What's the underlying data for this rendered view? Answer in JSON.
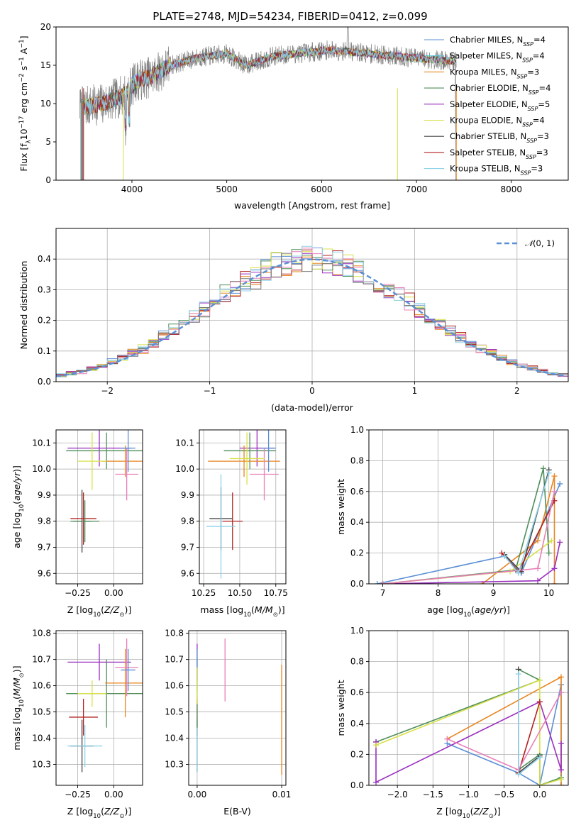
{
  "chart_data": [
    {
      "type": "line",
      "title": "PLATE=2748, MJD=54234, FIBERID=0412, z=0.099",
      "xlabel": "wavelength [Angstrom, rest frame]",
      "ylabel": "Flux [f_λ10^-17 erg cm^-2 s^-1 A^-1]",
      "xlim": [
        3200,
        8600
      ],
      "ylim": [
        0,
        20
      ],
      "xticks": [
        4000,
        5000,
        6000,
        7000,
        8000
      ],
      "yticks": [
        0,
        5,
        10,
        15,
        20
      ],
      "grid": false,
      "legend_position": "top-right",
      "spectrum_range": [
        3450,
        7420
      ],
      "spectrum_knots": {
        "x": [
          3450,
          3700,
          3900,
          4050,
          4200,
          4400,
          4700,
          5000,
          5200,
          5500,
          5800,
          6100,
          6500,
          6800,
          7100,
          7420
        ],
        "y": [
          9.5,
          10.0,
          11.0,
          13.0,
          13.5,
          15.0,
          16.0,
          16.5,
          15.0,
          16.2,
          16.6,
          17.0,
          16.5,
          16.2,
          15.8,
          15.5
        ]
      },
      "series": [
        {
          "name": "Chabrier MILES, N_SSP=4",
          "color": "#5b8fd6"
        },
        {
          "name": "Salpeter MILES, N_SSP=4",
          "color": "#54c8d8"
        },
        {
          "name": "Kroupa MILES, N_SSP=3",
          "color": "#e8841f"
        },
        {
          "name": "Chabrier ELODIE, N_SSP=4",
          "color": "#4f8f5a"
        },
        {
          "name": "Salpeter ELODIE, N_SSP=5",
          "color": "#9b2fbf"
        },
        {
          "name": "Kroupa ELODIE, N_SSP=4",
          "color": "#d8e048"
        },
        {
          "name": "Chabrier STELIB, N_SSP=3",
          "color": "#444444"
        },
        {
          "name": "Salpeter STELIB, N_SSP=3",
          "color": "#b22222"
        },
        {
          "name": "Kroupa STELIB, N_SSP=3",
          "color": "#8fd2e8"
        }
      ],
      "data_color": "#808080"
    },
    {
      "type": "line",
      "subtype": "step-histogram",
      "xlabel": "(data-model)/error",
      "ylabel": "Normed distribution",
      "xlim": [
        -2.5,
        2.5
      ],
      "ylim": [
        0,
        0.5
      ],
      "xticks": [
        -2,
        -1,
        0,
        1,
        2
      ],
      "yticks": [
        0.0,
        0.1,
        0.2,
        0.3,
        0.4
      ],
      "grid": true,
      "legend_position": "top-right",
      "reference_curve": {
        "name": "N(0,1)",
        "color": "#5b8fd6",
        "style": "dashed"
      },
      "bin_width": 0.1,
      "histogram_colors": [
        "#5b8fd6",
        "#e8841f",
        "#4f8f5a",
        "#9b2fbf",
        "#d8e048",
        "#b22222",
        "#e87fb8",
        "#8fd2e8",
        "#777777"
      ]
    },
    {
      "type": "scatter",
      "subtype": "errorbar",
      "xlabel": "Z [log10(Z/Z⊙)]",
      "ylabel": "age  [log10(age/yr)]",
      "xlim": [
        -0.4,
        0.2
      ],
      "ylim": [
        9.56,
        10.15
      ],
      "xticks": [
        -0.25,
        0.0
      ],
      "yticks": [
        9.6,
        9.7,
        9.8,
        9.9,
        10.0,
        10.1
      ],
      "points": [
        {
          "x": -0.22,
          "y": 9.8,
          "xerr": 0.06,
          "yerr": 0.12,
          "color": "#444444"
        },
        {
          "x": -0.21,
          "y": 9.81,
          "xerr": 0.09,
          "yerr": 0.1,
          "color": "#b22222"
        },
        {
          "x": -0.2,
          "y": 9.8,
          "xerr": 0.1,
          "yerr": 0.08,
          "color": "#4f8f5a"
        },
        {
          "x": -0.1,
          "y": 10.08,
          "xerr": 0.22,
          "yerr": 0.07,
          "color": "#9b2fbf"
        },
        {
          "x": -0.05,
          "y": 10.07,
          "xerr": 0.28,
          "yerr": 0.07,
          "color": "#4f8f5a"
        },
        {
          "x": 0.08,
          "y": 10.03,
          "xerr": 0.16,
          "yerr": 0.06,
          "color": "#e8841f"
        },
        {
          "x": 0.09,
          "y": 9.98,
          "xerr": 0.08,
          "yerr": 0.1,
          "color": "#e87fb8"
        },
        {
          "x": 0.1,
          "y": 10.08,
          "xerr": 0.05,
          "yerr": 0.09,
          "color": "#5b8fd6"
        },
        {
          "x": -0.15,
          "y": 10.03,
          "xerr": 0.1,
          "yerr": 0.11,
          "color": "#d8e048"
        }
      ]
    },
    {
      "type": "scatter",
      "subtype": "errorbar",
      "xlabel": "mass [log10(M/M⊙)]",
      "xlim": [
        10.22,
        10.82
      ],
      "ylim": [
        9.56,
        10.15
      ],
      "xticks": [
        10.25,
        10.5,
        10.75
      ],
      "yticks": [
        9.6,
        9.7,
        9.8,
        9.9,
        10.0,
        10.1
      ],
      "points": [
        {
          "x": 10.37,
          "y": 9.81,
          "xerr": 0.08,
          "yerr": 0.12,
          "color": "#444444"
        },
        {
          "x": 10.45,
          "y": 9.8,
          "xerr": 0.07,
          "yerr": 0.11,
          "color": "#b22222"
        },
        {
          "x": 10.37,
          "y": 9.78,
          "xerr": 0.1,
          "yerr": 0.2,
          "color": "#8fd2e8"
        },
        {
          "x": 10.62,
          "y": 10.08,
          "xerr": 0.12,
          "yerr": 0.07,
          "color": "#9b2fbf"
        },
        {
          "x": 10.57,
          "y": 10.07,
          "xerr": 0.18,
          "yerr": 0.07,
          "color": "#4f8f5a"
        },
        {
          "x": 10.53,
          "y": 10.03,
          "xerr": 0.25,
          "yerr": 0.06,
          "color": "#e8841f"
        },
        {
          "x": 10.67,
          "y": 9.98,
          "xerr": 0.1,
          "yerr": 0.1,
          "color": "#e87fb8"
        },
        {
          "x": 10.7,
          "y": 10.08,
          "xerr": 0.05,
          "yerr": 0.09,
          "color": "#5b8fd6"
        },
        {
          "x": 10.55,
          "y": 10.04,
          "xerr": 0.12,
          "yerr": 0.1,
          "color": "#d8e048"
        }
      ]
    },
    {
      "type": "line",
      "xlabel": "age  [log10(age/yr)]",
      "ylabel": "mass weight",
      "xlim": [
        6.75,
        10.35
      ],
      "ylim": [
        0.0,
        1.0
      ],
      "xticks": [
        7,
        8,
        9,
        10
      ],
      "yticks": [
        0.0,
        0.2,
        0.4,
        0.6,
        0.8,
        1.0
      ],
      "grid": true,
      "series": [
        {
          "color": "#5b8fd6",
          "x": [
            6.9,
            9.2,
            9.5,
            10.2
          ],
          "y": [
            0.0,
            0.18,
            0.07,
            0.65
          ]
        },
        {
          "color": "#e8841f",
          "x": [
            8.8,
            9.8,
            10.1,
            10.1
          ],
          "y": [
            0.0,
            0.28,
            0.7,
            0.0
          ]
        },
        {
          "color": "#4f8f5a",
          "x": [
            7.0,
            9.4,
            9.9,
            10.0
          ],
          "y": [
            0.0,
            0.09,
            0.75,
            0.2
          ]
        },
        {
          "color": "#9b2fbf",
          "x": [
            7.0,
            9.8,
            10.1,
            10.2
          ],
          "y": [
            0.0,
            0.02,
            0.1,
            0.27
          ]
        },
        {
          "color": "#d8e048",
          "x": [
            7.0,
            9.3,
            10.05
          ],
          "y": [
            0.0,
            0.08,
            0.28
          ]
        },
        {
          "color": "#444444",
          "x": [
            9.2,
            9.5,
            10.0
          ],
          "y": [
            0.19,
            0.08,
            0.74
          ]
        },
        {
          "color": "#b22222",
          "x": [
            9.15,
            9.45,
            10.1
          ],
          "y": [
            0.2,
            0.08,
            0.54
          ]
        },
        {
          "color": "#e87fb8",
          "x": [
            7.0,
            9.8,
            10.1
          ],
          "y": [
            0.0,
            0.1,
            0.6
          ]
        },
        {
          "color": "#8fd2e8",
          "x": [
            9.2,
            9.45,
            10.0
          ],
          "y": [
            0.18,
            0.07,
            0.72
          ]
        }
      ]
    },
    {
      "type": "scatter",
      "subtype": "errorbar",
      "xlabel": "Z [log10(Z/Z⊙)]",
      "ylabel": "mass [log10(M/M⊙)]",
      "xlim": [
        -0.4,
        0.2
      ],
      "ylim": [
        10.22,
        10.81
      ],
      "xticks": [
        -0.25,
        0.0
      ],
      "yticks": [
        10.3,
        10.4,
        10.5,
        10.6,
        10.7,
        10.8
      ],
      "points": [
        {
          "x": -0.22,
          "y": 10.37,
          "xerr": 0.08,
          "yerr": 0.1,
          "color": "#444444"
        },
        {
          "x": -0.21,
          "y": 10.48,
          "xerr": 0.1,
          "yerr": 0.07,
          "color": "#b22222"
        },
        {
          "x": -0.2,
          "y": 10.37,
          "xerr": 0.12,
          "yerr": 0.08,
          "color": "#8fd2e8"
        },
        {
          "x": -0.1,
          "y": 10.69,
          "xerr": 0.22,
          "yerr": 0.07,
          "color": "#9b2fbf"
        },
        {
          "x": -0.05,
          "y": 10.57,
          "xerr": 0.28,
          "yerr": 0.13,
          "color": "#4f8f5a"
        },
        {
          "x": 0.08,
          "y": 10.61,
          "xerr": 0.14,
          "yerr": 0.13,
          "color": "#e8841f"
        },
        {
          "x": 0.09,
          "y": 10.67,
          "xerr": 0.08,
          "yerr": 0.11,
          "color": "#e87fb8"
        },
        {
          "x": 0.1,
          "y": 10.66,
          "xerr": 0.05,
          "yerr": 0.08,
          "color": "#5b8fd6"
        },
        {
          "x": -0.15,
          "y": 10.57,
          "xerr": 0.1,
          "yerr": 0.05,
          "color": "#d8e048"
        }
      ]
    },
    {
      "type": "scatter",
      "subtype": "errorbar",
      "xlabel": "E(B-V)",
      "xlim": [
        -0.001,
        0.0105
      ],
      "ylim": [
        10.22,
        10.81
      ],
      "xticks": [
        0.0,
        0.01
      ],
      "xtick_labels": [
        "0.00",
        "0.01"
      ],
      "yticks": [
        10.3,
        10.4,
        10.5,
        10.6,
        10.7,
        10.8
      ],
      "points": [
        {
          "x": 0.0,
          "y": 10.37,
          "yerr": 0.1,
          "color": "#444444"
        },
        {
          "x": 0.0,
          "y": 10.48,
          "yerr": 0.07,
          "color": "#b22222"
        },
        {
          "x": 0.0,
          "y": 10.37,
          "yerr": 0.1,
          "color": "#8fd2e8"
        },
        {
          "x": 0.0,
          "y": 10.69,
          "yerr": 0.07,
          "color": "#9b2fbf"
        },
        {
          "x": 0.0,
          "y": 10.57,
          "yerr": 0.13,
          "color": "#4f8f5a"
        },
        {
          "x": 0.01,
          "y": 10.47,
          "yerr": 0.21,
          "color": "#e8841f"
        },
        {
          "x": 0.0033,
          "y": 10.66,
          "yerr": 0.12,
          "color": "#e87fb8"
        },
        {
          "x": 0.0,
          "y": 10.66,
          "yerr": 0.08,
          "color": "#5b8fd6"
        },
        {
          "x": 0.0,
          "y": 10.6,
          "yerr": 0.07,
          "color": "#d8e048"
        }
      ]
    },
    {
      "type": "line",
      "xlabel": "Z [log10(Z/Z⊙)]",
      "ylabel": "mass weight",
      "xlim": [
        -2.4,
        0.4
      ],
      "ylim": [
        0.0,
        1.0
      ],
      "xticks": [
        -2.0,
        -1.5,
        -1.0,
        -0.5,
        0.0
      ],
      "yticks": [
        0.0,
        0.2,
        0.4,
        0.6,
        0.8,
        1.0
      ],
      "grid": true,
      "series": [
        {
          "color": "#5b8fd6",
          "x": [
            -1.3,
            -0.3,
            0.0,
            0.3,
            0.3
          ],
          "y": [
            0.27,
            0.08,
            0.0,
            0.65,
            0.0
          ]
        },
        {
          "color": "#e8841f",
          "x": [
            -1.3,
            0.3,
            0.3
          ],
          "y": [
            0.3,
            0.7,
            0.0
          ]
        },
        {
          "color": "#4f8f5a",
          "x": [
            -2.3,
            0.0,
            -0.3,
            -0.3,
            0.0,
            0.0,
            0.3
          ],
          "y": [
            0.28,
            0.68,
            0.75,
            0.1,
            0.2,
            0.0,
            0.05
          ]
        },
        {
          "color": "#9b2fbf",
          "x": [
            -2.3,
            -2.3,
            0.0,
            0.3,
            0.3
          ],
          "y": [
            0.28,
            0.02,
            0.54,
            0.1,
            0.27
          ]
        },
        {
          "color": "#d8e048",
          "x": [
            -2.3,
            0.0,
            0.0,
            0.3
          ],
          "y": [
            0.26,
            0.68,
            0.0,
            0.04
          ]
        },
        {
          "color": "#444444",
          "x": [
            -0.3,
            -0.3,
            0.0
          ],
          "y": [
            0.75,
            0.08,
            0.19
          ]
        },
        {
          "color": "#b22222",
          "x": [
            -0.3,
            0.0
          ],
          "y": [
            0.08,
            0.54
          ]
        },
        {
          "color": "#e87fb8",
          "x": [
            -1.3,
            -0.3,
            0.3
          ],
          "y": [
            0.3,
            0.1,
            0.6
          ]
        },
        {
          "color": "#8fd2e8",
          "x": [
            -0.3,
            -0.3,
            0.0
          ],
          "y": [
            0.72,
            0.07,
            0.18
          ]
        }
      ]
    }
  ]
}
